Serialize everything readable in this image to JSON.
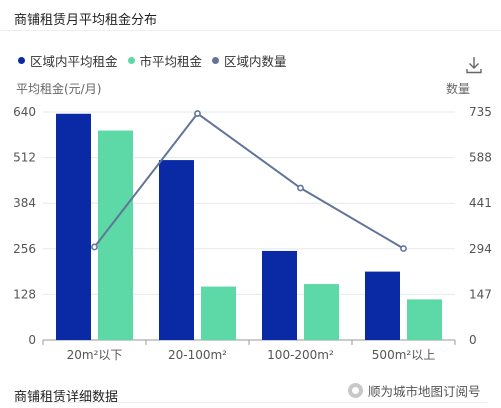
{
  "page": {
    "title": "商铺租赁月平均租金分布",
    "footer_title": "商铺租赁详细数据",
    "watermark": "顺为城市地图订阅号"
  },
  "chart_data": {
    "type": "bar",
    "categories": [
      "20m²以下",
      "20-100m²",
      "100-200m²",
      "500m²以上"
    ],
    "series": [
      {
        "name": "区域内平均租金",
        "type": "bar",
        "axis": "left",
        "color": "#0a2aa5",
        "values": [
          635,
          505,
          250,
          192
        ]
      },
      {
        "name": "市平均租金",
        "type": "bar",
        "axis": "left",
        "color": "#5cd9a6",
        "values": [
          588,
          150,
          157,
          114
        ]
      },
      {
        "name": "区域内数量",
        "type": "line",
        "axis": "right",
        "color": "#627598",
        "values": [
          300,
          730,
          490,
          295
        ]
      }
    ],
    "ylabel_left": "平均租金(元/月)",
    "ylabel_right": "数量",
    "ylim_left": [
      0,
      640
    ],
    "ylim_right": [
      0,
      735
    ],
    "yticks_left": [
      "0",
      "128",
      "256",
      "384",
      "512",
      "640"
    ],
    "yticks_right": [
      "0",
      "147",
      "294",
      "441",
      "588",
      "735"
    ],
    "grid": true,
    "legend_position": "top-left"
  },
  "colors": {
    "grid": "#e6e8ee",
    "axis": "#999999",
    "tick_text": "#555555"
  },
  "icons": {
    "download": "download-icon",
    "watermark": "wechat-icon"
  }
}
